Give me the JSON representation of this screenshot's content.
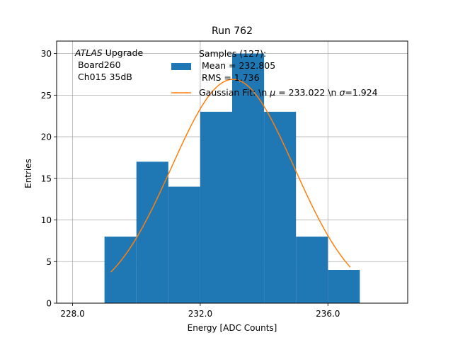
{
  "chart_data": {
    "type": "bar",
    "title": "Run 762",
    "xlabel": "Energy [ADC Counts]",
    "ylabel": "Entries",
    "xlim": [
      227.5,
      238.5
    ],
    "ylim": [
      0,
      31.5
    ],
    "xticks": [
      228.0,
      232.0,
      236.0
    ],
    "xtick_labels": [
      "228.0",
      "232.0",
      "236.0"
    ],
    "yticks": [
      0,
      5,
      10,
      15,
      20,
      25,
      30
    ],
    "grid": true,
    "bin_width": 1,
    "bins": [
      {
        "x0": 229,
        "x1": 230,
        "count": 8
      },
      {
        "x0": 230,
        "x1": 231,
        "count": 17
      },
      {
        "x0": 231,
        "x1": 232,
        "count": 14
      },
      {
        "x0": 232,
        "x1": 233,
        "count": 23
      },
      {
        "x0": 233,
        "x1": 234,
        "count": 30
      },
      {
        "x0": 234,
        "x1": 235,
        "count": 23
      },
      {
        "x0": 235,
        "x1": 236,
        "count": 8
      },
      {
        "x0": 236,
        "x1": 237,
        "count": 4
      }
    ],
    "fit": {
      "mu": 233.022,
      "sigma": 1.924,
      "amplitude": 26.9,
      "x_range": [
        229.2,
        236.7
      ]
    },
    "annotation": {
      "italic": "ATLAS",
      "line1_rest": " Upgrade",
      "line2": " Board260",
      "line3": " Ch015 35dB"
    },
    "legend": {
      "placement": "top-right",
      "hist_label_lines": [
        "Samples (127):",
        " Mean = 232.805",
        " RMS = 1.736"
      ],
      "fit_label_prefix": "Gaussian Fit: \\n ",
      "fit_label_mu": "μ",
      "fit_label_mid": " = 233.022 \\n ",
      "fit_label_sigma": "σ",
      "fit_label_end": "=1.924"
    },
    "colors": {
      "hist": "#1f77b4",
      "fit": "#ff7f0e",
      "grid": "#b0b0b0"
    }
  }
}
